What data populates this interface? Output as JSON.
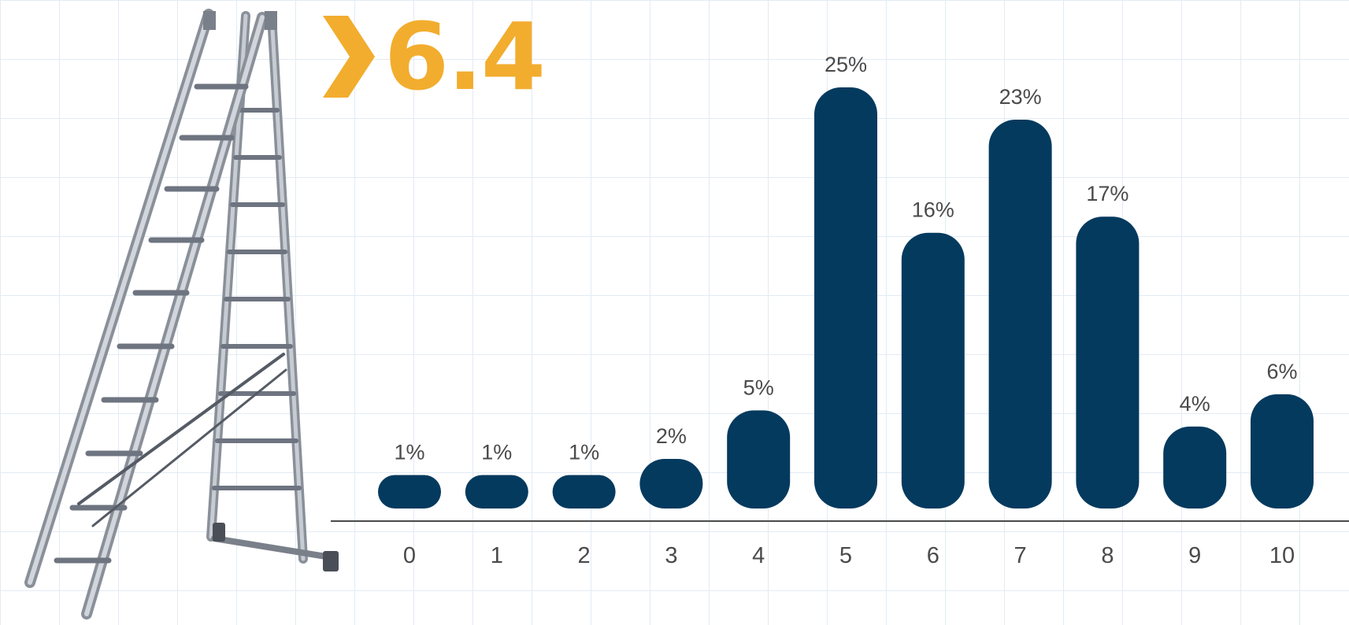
{
  "headline": {
    "value": "6.4",
    "accent_color": "#f2ad2e",
    "chevron_icon": "chevron-right-icon"
  },
  "illustration": {
    "icon": "ladder-icon"
  },
  "colors": {
    "bar": "#043a5e",
    "axis": "#4a4a4a",
    "grid": "#e3ebf4"
  },
  "chart_data": {
    "type": "bar",
    "categories": [
      "0",
      "1",
      "2",
      "3",
      "4",
      "5",
      "6",
      "7",
      "8",
      "9",
      "10"
    ],
    "values": [
      1,
      1,
      1,
      2,
      5,
      25,
      16,
      23,
      17,
      4,
      6
    ],
    "data_labels": [
      "1%",
      "1%",
      "1%",
      "2%",
      "5%",
      "25%",
      "16%",
      "23%",
      "17%",
      "4%",
      "6%"
    ],
    "unit": "%",
    "title": "",
    "xlabel": "",
    "ylabel": "",
    "ylim": [
      0,
      25
    ],
    "grid": true,
    "legend": "none"
  }
}
